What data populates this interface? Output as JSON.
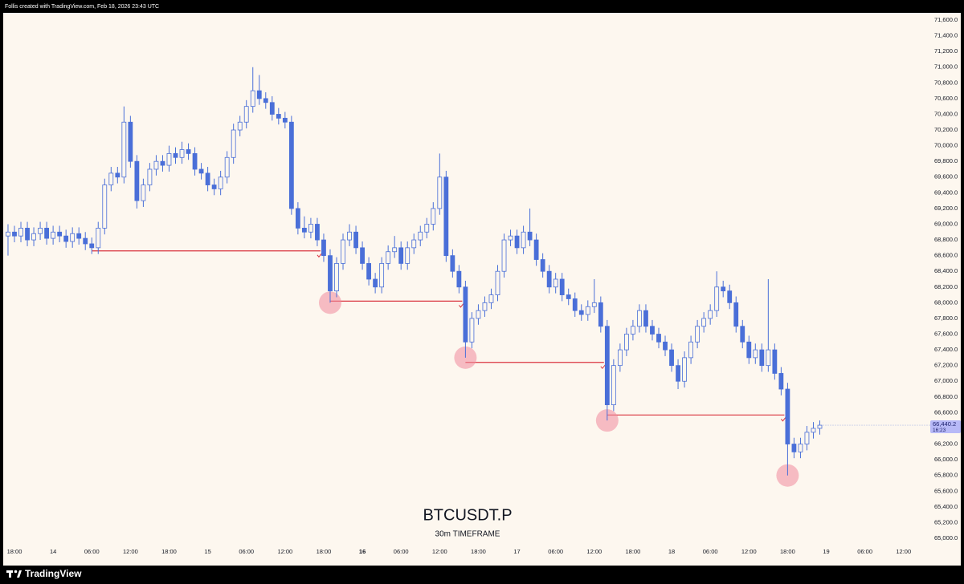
{
  "chart_data": {
    "type": "candlestick",
    "title": "BTCUSDT.P",
    "subtitle": "30m TIMEFRAME",
    "credit": "Follis created with TradingView.com, Feb 18, 2026 23:43 UTC",
    "brand": "TradingView",
    "color_up": "#4a6fd8",
    "color_down": "#4a6fd8",
    "level_color": "#d9343f",
    "sweep_color": "#f08a9c",
    "categories": [
      null,
      "18:00",
      null,
      null,
      null,
      null,
      null,
      "14",
      null,
      null,
      null,
      null,
      null,
      "06:00",
      null,
      null,
      null,
      null,
      null,
      "12:00",
      null,
      null,
      null,
      null,
      null,
      "18:00",
      null,
      null,
      null,
      null,
      null,
      "15",
      null,
      null,
      null,
      null,
      null,
      "06:00",
      null,
      null,
      null,
      null,
      null,
      "12:00",
      null,
      null,
      null,
      null,
      null,
      "18:00",
      null,
      null,
      null,
      null,
      null,
      "16",
      null,
      null,
      null,
      null,
      null,
      "06:00",
      null,
      null,
      null,
      null,
      null,
      "12:00",
      null,
      null,
      null,
      null,
      null,
      "18:00",
      null,
      null,
      null,
      null,
      null,
      "17",
      null,
      null,
      null,
      null,
      null,
      "06:00",
      null,
      null,
      null,
      null,
      null,
      "12:00",
      null,
      null,
      null,
      null,
      null,
      "18:00",
      null,
      null,
      null,
      null,
      null,
      "18",
      null,
      null,
      null,
      null,
      null,
      "06:00",
      null,
      null,
      null,
      null,
      null,
      "12:00",
      null,
      null,
      null,
      null,
      null,
      "18:00",
      null,
      null,
      null,
      null,
      null,
      "19",
      null,
      null,
      null,
      null,
      null,
      "06:00",
      null,
      null,
      null,
      null,
      null,
      "12:00"
    ],
    "candles": [
      [
        68850,
        69000,
        68600,
        68900
      ],
      [
        68900,
        68980,
        68770,
        68850
      ],
      [
        68850,
        69030,
        68770,
        68950
      ],
      [
        68950,
        69030,
        68720,
        68800
      ],
      [
        68800,
        68960,
        68720,
        68880
      ],
      [
        68880,
        69030,
        68800,
        68950
      ],
      [
        68950,
        69030,
        68740,
        68820
      ],
      [
        68820,
        68980,
        68740,
        68900
      ],
      [
        68900,
        68980,
        68770,
        68850
      ],
      [
        68850,
        68930,
        68700,
        68780
      ],
      [
        68780,
        68960,
        68700,
        68880
      ],
      [
        68880,
        68960,
        68740,
        68820
      ],
      [
        68820,
        68900,
        68670,
        68750
      ],
      [
        68750,
        68830,
        68620,
        68700
      ],
      [
        68700,
        69030,
        68620,
        68950
      ],
      [
        68950,
        69580,
        68870,
        69500
      ],
      [
        69500,
        69730,
        69420,
        69650
      ],
      [
        69650,
        69730,
        69520,
        69600
      ],
      [
        69600,
        70500,
        69520,
        70300
      ],
      [
        70300,
        70380,
        69720,
        69800
      ],
      [
        69800,
        69880,
        69200,
        69300
      ],
      [
        69300,
        69580,
        69220,
        69500
      ],
      [
        69500,
        69780,
        69420,
        69700
      ],
      [
        69700,
        69880,
        69620,
        69800
      ],
      [
        69800,
        69880,
        69670,
        69750
      ],
      [
        69750,
        70000,
        69670,
        69900
      ],
      [
        69900,
        69980,
        69770,
        69850
      ],
      [
        69850,
        70050,
        69770,
        69950
      ],
      [
        69950,
        70030,
        69820,
        69900
      ],
      [
        69900,
        69980,
        69620,
        69700
      ],
      [
        69700,
        69780,
        69570,
        69650
      ],
      [
        69650,
        69730,
        69420,
        69500
      ],
      [
        69500,
        69580,
        69370,
        69450
      ],
      [
        69450,
        69680,
        69370,
        69600
      ],
      [
        69600,
        69930,
        69520,
        69850
      ],
      [
        69850,
        70280,
        69770,
        70200
      ],
      [
        70200,
        70380,
        70120,
        70300
      ],
      [
        70300,
        70580,
        70220,
        70500
      ],
      [
        70500,
        71000,
        70420,
        70700
      ],
      [
        70700,
        70900,
        70520,
        70600
      ],
      [
        70600,
        70680,
        70470,
        70550
      ],
      [
        70550,
        70630,
        70320,
        70400
      ],
      [
        70400,
        70480,
        70270,
        70350
      ],
      [
        70350,
        70430,
        70220,
        70300
      ],
      [
        70300,
        70380,
        69120,
        69200
      ],
      [
        69200,
        69280,
        68870,
        68950
      ],
      [
        68950,
        69100,
        68820,
        68900
      ],
      [
        68900,
        69080,
        68820,
        69000
      ],
      [
        69000,
        69080,
        68720,
        68800
      ],
      [
        68800,
        68880,
        68520,
        68600
      ],
      [
        68600,
        68680,
        68000,
        68150
      ],
      [
        68150,
        68580,
        68070,
        68500
      ],
      [
        68500,
        68880,
        68420,
        68800
      ],
      [
        68800,
        69000,
        68720,
        68900
      ],
      [
        68900,
        68980,
        68620,
        68700
      ],
      [
        68700,
        68780,
        68420,
        68500
      ],
      [
        68500,
        68580,
        68220,
        68300
      ],
      [
        68300,
        68380,
        68120,
        68200
      ],
      [
        68200,
        68580,
        68120,
        68500
      ],
      [
        68500,
        68730,
        68420,
        68650
      ],
      [
        68650,
        68850,
        68570,
        68700
      ],
      [
        68700,
        68780,
        68420,
        68500
      ],
      [
        68500,
        68780,
        68420,
        68700
      ],
      [
        68700,
        68880,
        68620,
        68800
      ],
      [
        68800,
        68980,
        68720,
        68900
      ],
      [
        68900,
        69080,
        68820,
        69000
      ],
      [
        69000,
        69280,
        68920,
        69200
      ],
      [
        69200,
        69900,
        69120,
        69600
      ],
      [
        69600,
        69680,
        68520,
        68600
      ],
      [
        68600,
        68680,
        68320,
        68400
      ],
      [
        68400,
        68480,
        68120,
        68200
      ],
      [
        68200,
        68280,
        67300,
        67500
      ],
      [
        67500,
        67880,
        67420,
        67800
      ],
      [
        67800,
        67980,
        67720,
        67900
      ],
      [
        67900,
        68080,
        67820,
        68000
      ],
      [
        68000,
        68180,
        67920,
        68100
      ],
      [
        68100,
        68480,
        68020,
        68400
      ],
      [
        68400,
        68880,
        68320,
        68800
      ],
      [
        68800,
        68930,
        68720,
        68850
      ],
      [
        68850,
        68930,
        68620,
        68700
      ],
      [
        68700,
        68980,
        68620,
        68900
      ],
      [
        68900,
        69200,
        68720,
        68800
      ],
      [
        68800,
        68880,
        68470,
        68550
      ],
      [
        68550,
        68630,
        68320,
        68400
      ],
      [
        68400,
        68480,
        68120,
        68200
      ],
      [
        68200,
        68380,
        68120,
        68300
      ],
      [
        68300,
        68380,
        68020,
        68100
      ],
      [
        68100,
        68180,
        67970,
        68050
      ],
      [
        68050,
        68130,
        67820,
        67900
      ],
      [
        67900,
        67980,
        67770,
        67850
      ],
      [
        67850,
        68030,
        67770,
        67950
      ],
      [
        67950,
        68300,
        67870,
        68000
      ],
      [
        68000,
        68080,
        67620,
        67700
      ],
      [
        67700,
        67780,
        66500,
        66700
      ],
      [
        66700,
        67280,
        66620,
        67200
      ],
      [
        67200,
        67480,
        67120,
        67400
      ],
      [
        67400,
        67680,
        67320,
        67600
      ],
      [
        67600,
        67780,
        67520,
        67700
      ],
      [
        67700,
        67980,
        67620,
        67900
      ],
      [
        67900,
        67980,
        67620,
        67700
      ],
      [
        67700,
        67780,
        67520,
        67600
      ],
      [
        67600,
        67680,
        67420,
        67500
      ],
      [
        67500,
        67580,
        67320,
        67400
      ],
      [
        67400,
        67480,
        67120,
        67200
      ],
      [
        67200,
        67280,
        66900,
        67000
      ],
      [
        67000,
        67380,
        66920,
        67300
      ],
      [
        67300,
        67580,
        67220,
        67500
      ],
      [
        67500,
        67780,
        67420,
        67700
      ],
      [
        67700,
        67880,
        67620,
        67800
      ],
      [
        67800,
        67980,
        67720,
        67900
      ],
      [
        67900,
        68400,
        67820,
        68200
      ],
      [
        68200,
        68280,
        68070,
        68150
      ],
      [
        68150,
        68230,
        67920,
        68000
      ],
      [
        68000,
        68080,
        67620,
        67700
      ],
      [
        67700,
        67780,
        67420,
        67500
      ],
      [
        67500,
        67580,
        67220,
        67300
      ],
      [
        67300,
        67480,
        67220,
        67400
      ],
      [
        67400,
        67480,
        67120,
        67200
      ],
      [
        67200,
        68300,
        67120,
        67400
      ],
      [
        67400,
        67480,
        67020,
        67100
      ],
      [
        67100,
        67180,
        66820,
        66900
      ],
      [
        66900,
        66980,
        65800,
        66200
      ],
      [
        66200,
        66280,
        66020,
        66100
      ],
      [
        66100,
        66280,
        66020,
        66200
      ],
      [
        66200,
        66430,
        66120,
        66350
      ],
      [
        66350,
        66480,
        66270,
        66400
      ],
      [
        66400,
        66500,
        66320,
        66440
      ],
      null,
      null,
      null,
      null,
      null,
      null,
      null,
      null,
      null,
      null,
      null,
      null,
      null
    ],
    "levels": [
      {
        "value": 68660,
        "from": 13,
        "to": 48
      },
      {
        "value": 68020,
        "from": 50,
        "to": 70
      },
      {
        "value": 67240,
        "from": 71,
        "to": 92
      },
      {
        "value": 66570,
        "from": 93,
        "to": 120
      }
    ],
    "sweeps": [
      50,
      71,
      93,
      121
    ],
    "last_price": {
      "value": 66440.2,
      "label": "66,440.2"
    },
    "countdown": "16:23",
    "ylim": [
      64908,
      71692
    ],
    "yticks": [
      {
        "value": 65000,
        "label": "65,000.0"
      },
      {
        "value": 65200,
        "label": "65,200.0"
      },
      {
        "value": 65400,
        "label": "65,400.0"
      },
      {
        "value": 65600,
        "label": "65,600.0"
      },
      {
        "value": 65800,
        "label": "65,800.0"
      },
      {
        "value": 66000,
        "label": "66,000.0"
      },
      {
        "value": 66200,
        "label": "66,200.0"
      },
      {
        "value": 66400,
        "label": "66,400.0"
      },
      {
        "value": 66600,
        "label": "66,600.0"
      },
      {
        "value": 66800,
        "label": "66,800.0"
      },
      {
        "value": 67000,
        "label": "67,000.0"
      },
      {
        "value": 67200,
        "label": "67,200.0"
      },
      {
        "value": 67400,
        "label": "67,400.0"
      },
      {
        "value": 67600,
        "label": "67,600.0"
      },
      {
        "value": 67800,
        "label": "67,800.0"
      },
      {
        "value": 68000,
        "label": "68,000.0"
      },
      {
        "value": 68200,
        "label": "68,200.0"
      },
      {
        "value": 68400,
        "label": "68,400.0"
      },
      {
        "value": 68600,
        "label": "68,600.0"
      },
      {
        "value": 68800,
        "label": "68,800.0"
      },
      {
        "value": 69000,
        "label": "69,000.0"
      },
      {
        "value": 69200,
        "label": "69,200.0"
      },
      {
        "value": 69400,
        "label": "69,400.0"
      },
      {
        "value": 69600,
        "label": "69,600.0"
      },
      {
        "value": 69800,
        "label": "69,800.0"
      },
      {
        "value": 70000,
        "label": "70,000.0"
      },
      {
        "value": 70200,
        "label": "70,200.0"
      },
      {
        "value": 70400,
        "label": "70,400.0"
      },
      {
        "value": 70600,
        "label": "70,600.0"
      },
      {
        "value": 70800,
        "label": "70,800.0"
      },
      {
        "value": 71000,
        "label": "71,000.0"
      },
      {
        "value": 71200,
        "label": "71,200.0"
      },
      {
        "value": 71400,
        "label": "71,400.0"
      },
      {
        "value": 71600,
        "label": "71,600.0"
      }
    ],
    "grid": false
  }
}
